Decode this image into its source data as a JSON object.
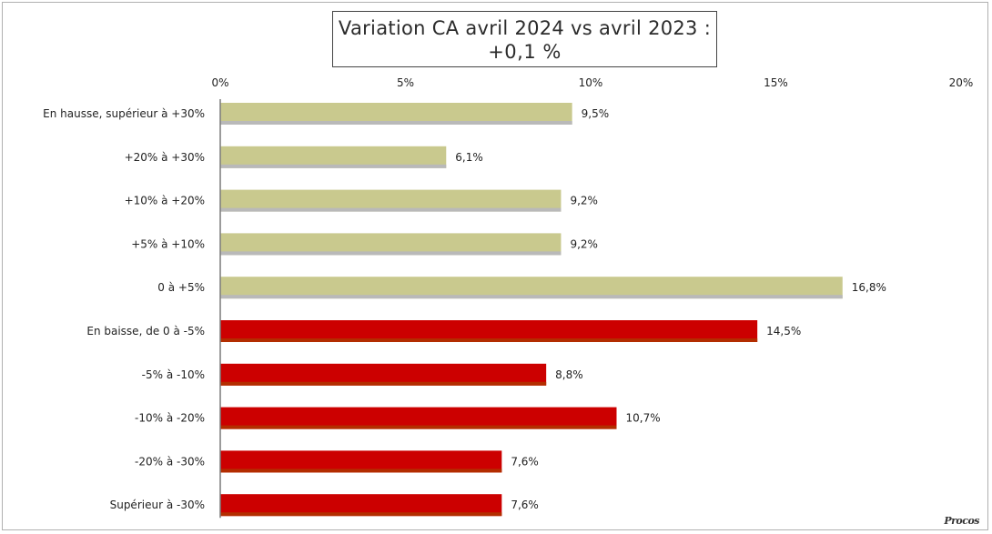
{
  "title": {
    "line1": "Variation CA avril 2024 vs avril 2023 :",
    "line2": "+0,1 %"
  },
  "logo_text": "Procos",
  "colors": {
    "increase": "#c9c98e",
    "increase_bottom": "#b9b9b9",
    "decrease": "#cc0000",
    "decrease_bottom": "#b32d00"
  },
  "chart_data": {
    "type": "bar",
    "orientation": "horizontal",
    "title": "Variation CA avril 2024 vs avril 2023 : +0,1 %",
    "xlim": [
      0,
      20
    ],
    "x_ticks": [
      "0%",
      "5%",
      "10%",
      "15%",
      "20%"
    ],
    "x_tick_values": [
      0,
      5,
      10,
      15,
      20
    ],
    "axis_position": "top",
    "grid": false,
    "categories": [
      "En hausse, supérieur à +30%",
      "+20% à +30%",
      "+10% à +20%",
      "+5% à +10%",
      "0 à +5%",
      "En baisse, de 0 à -5%",
      "-5% à -10%",
      "-10% à -20%",
      "-20% à -30%",
      "Supérieur à -30%"
    ],
    "values": [
      9.5,
      6.1,
      9.2,
      9.2,
      16.8,
      14.5,
      8.8,
      10.7,
      7.6,
      7.6
    ],
    "value_labels": [
      "9,5%",
      "6,1%",
      "9,2%",
      "9,2%",
      "16,8%",
      "14,5%",
      "8,8%",
      "10,7%",
      "7,6%",
      "7,6%"
    ],
    "groups": [
      "increase",
      "increase",
      "increase",
      "increase",
      "increase",
      "decrease",
      "decrease",
      "decrease",
      "decrease",
      "decrease"
    ]
  }
}
